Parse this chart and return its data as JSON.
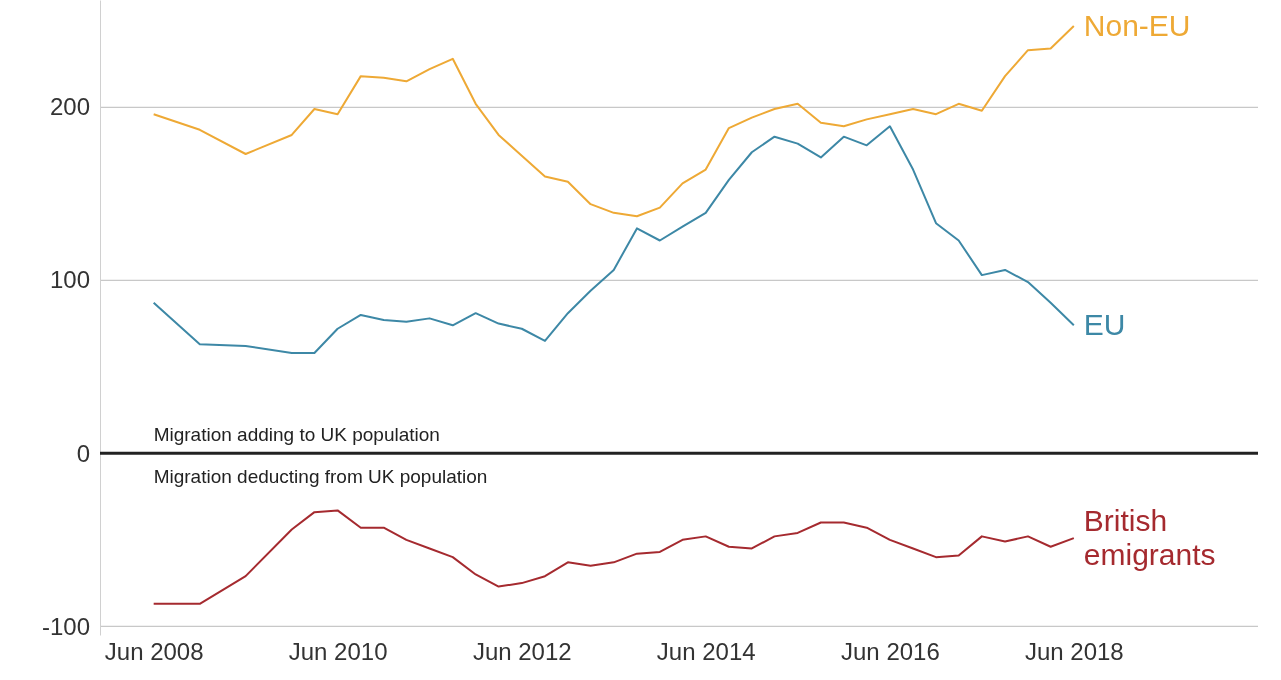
{
  "chart_data": {
    "type": "line",
    "x": [
      "2008-06",
      "2008-12",
      "2009-06",
      "2009-12",
      "2010-03",
      "2010-06",
      "2010-09",
      "2010-12",
      "2011-03",
      "2011-06",
      "2011-09",
      "2011-12",
      "2012-03",
      "2012-06",
      "2012-09",
      "2012-12",
      "2013-03",
      "2013-06",
      "2013-09",
      "2013-12",
      "2014-03",
      "2014-06",
      "2014-09",
      "2014-12",
      "2015-03",
      "2015-06",
      "2015-09",
      "2015-12",
      "2016-03",
      "2016-06",
      "2016-09",
      "2016-12",
      "2017-03",
      "2017-06",
      "2017-09",
      "2017-12",
      "2018-03",
      "2018-06"
    ],
    "series": [
      {
        "name": "Non-EU",
        "color": "#eea935",
        "values": [
          196,
          187,
          173,
          184,
          199,
          196,
          218,
          217,
          215,
          222,
          228,
          202,
          184,
          172,
          160,
          157,
          144,
          139,
          137,
          142,
          156,
          164,
          188,
          194,
          199,
          202,
          191,
          189,
          193,
          196,
          199,
          196,
          202,
          198,
          218,
          233,
          234,
          247
        ]
      },
      {
        "name": "EU",
        "color": "#3d88a6",
        "values": [
          87,
          63,
          62,
          58,
          58,
          72,
          80,
          77,
          76,
          78,
          74,
          81,
          75,
          72,
          65,
          81,
          94,
          106,
          130,
          123,
          131,
          139,
          158,
          174,
          183,
          179,
          171,
          183,
          178,
          189,
          164,
          133,
          123,
          103,
          106,
          99,
          87,
          74
        ]
      },
      {
        "name": "British emigrants",
        "color": "#a52a2f",
        "values": [
          -87,
          -87,
          -71,
          -44,
          -34,
          -33,
          -43,
          -43,
          -50,
          -55,
          -60,
          -70,
          -77,
          -75,
          -71,
          -63,
          -65,
          -63,
          -58,
          -57,
          -50,
          -48,
          -54,
          -55,
          -48,
          -46,
          -40,
          -40,
          -43,
          -50,
          -55,
          -60,
          -59,
          -48,
          -51,
          -48,
          -54,
          -49
        ]
      }
    ],
    "xlim": [
      "2007-11",
      "2020-06"
    ],
    "xticks": [
      {
        "value": "2008-06",
        "label": "Jun 2008"
      },
      {
        "value": "2010-06",
        "label": "Jun 2010"
      },
      {
        "value": "2012-06",
        "label": "Jun 2012"
      },
      {
        "value": "2014-06",
        "label": "Jun 2014"
      },
      {
        "value": "2016-06",
        "label": "Jun 2016"
      },
      {
        "value": "2018-06",
        "label": "Jun 2018"
      }
    ],
    "ylim": [
      -105,
      262
    ],
    "yticks": [
      -100,
      0,
      100,
      200
    ],
    "grid": "y",
    "legend": false,
    "ref_lines": [
      {
        "axis": "y",
        "value": 0,
        "color": "#222222"
      }
    ],
    "annotations": [
      "Migration adding to UK population",
      "Migration deducting from UK population"
    ]
  }
}
